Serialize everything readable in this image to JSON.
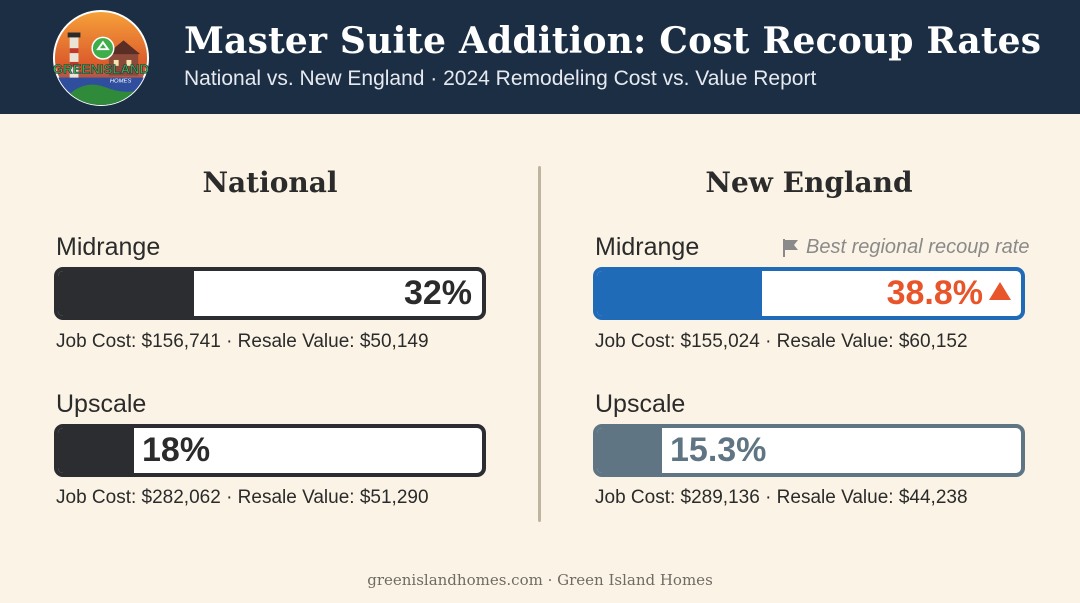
{
  "header": {
    "title": "Master Suite Addition: Cost Recoup Rates",
    "subtitle": "National vs. New England · 2024 Remodeling Cost vs. Value Report",
    "logo_text": "GREENISLAND",
    "logo_sub": "HOMES"
  },
  "colors": {
    "header_bg": "#1c2e44",
    "national_fill": "#2b2d31",
    "ne_midrange_fill": "#1f6bb8",
    "ne_upscale_fill": "#5f7583",
    "highlight": "#e8552a"
  },
  "note": {
    "icon": "flag-icon",
    "text": "Best regional recoup rate"
  },
  "chart_data": [
    {
      "type": "bar",
      "title": "National",
      "ylim": [
        0,
        100
      ],
      "categories": [
        "Midrange",
        "Upscale"
      ],
      "values": [
        32,
        18
      ],
      "value_labels": [
        "32%",
        "18%"
      ],
      "details": [
        "Job Cost: $156,741 · Resale Value: $50,149",
        "Job Cost: $282,062 · Resale Value: $51,290"
      ]
    },
    {
      "type": "bar",
      "title": "New England",
      "ylim": [
        0,
        100
      ],
      "categories": [
        "Midrange",
        "Upscale"
      ],
      "values": [
        38.8,
        15.3
      ],
      "value_labels": [
        "38.8%",
        "15.3%"
      ],
      "details": [
        "Job Cost: $155,024 · Resale Value: $60,152",
        "Job Cost: $289,136 · Resale Value: $44,238"
      ]
    }
  ],
  "footer": "greenislandhomes.com · Green Island Homes"
}
